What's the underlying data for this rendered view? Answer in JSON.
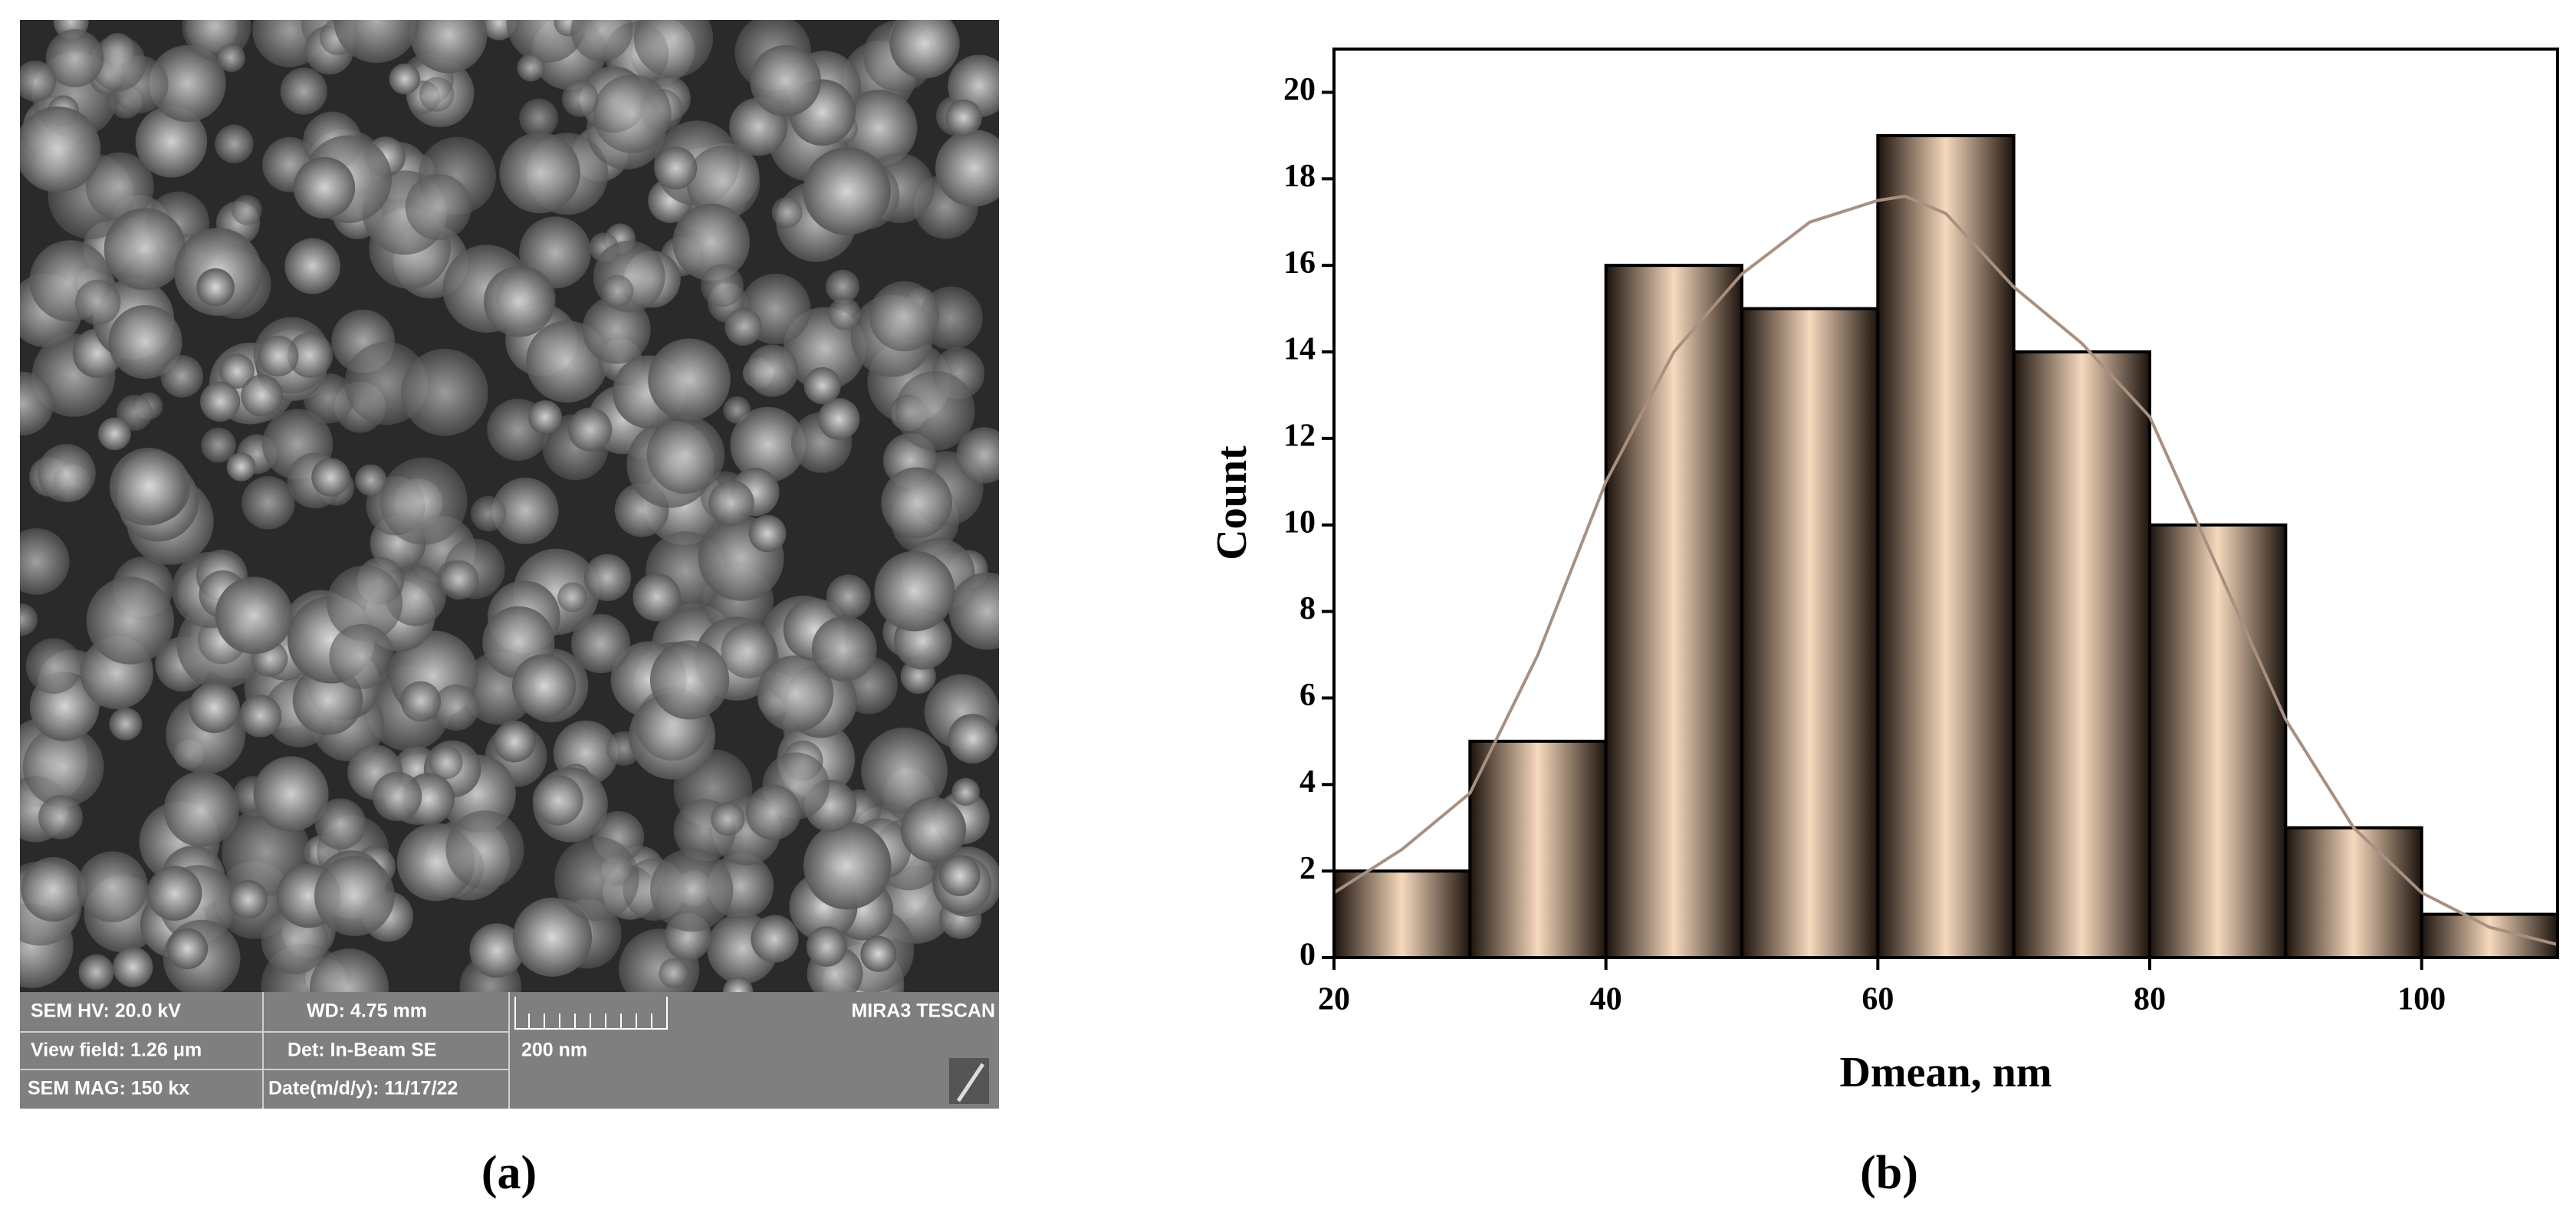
{
  "sem_info": {
    "rows": [
      [
        "SEM HV: 20.0 kV",
        "WD: 4.75 mm"
      ],
      [
        "View field: 1.26 μm",
        "Det: In-Beam SE"
      ],
      [
        "SEM MAG: 150 kx",
        "Date(m/d/y): 11/17/22"
      ]
    ],
    "scale_bar": "200 nm",
    "brand": "MIRA3 TESCAN"
  },
  "panel_labels": [
    "(a)",
    "(b)"
  ],
  "chart_data": {
    "type": "histogram",
    "x_label": "Dmean, nm",
    "y_label": "Count",
    "bins": [
      20,
      30,
      40,
      50,
      60,
      70,
      80,
      90,
      100,
      110
    ],
    "values": [
      2,
      5,
      16,
      15,
      19,
      14,
      10,
      3,
      1
    ],
    "color": "#f7d9bd",
    "edge_color": "#1c130d",
    "curve": {
      "color": "#a89080",
      "x": [
        20,
        25,
        30,
        35,
        40,
        45,
        50,
        55,
        60,
        62,
        65,
        70,
        75,
        80,
        85,
        90,
        95,
        100,
        105,
        110
      ],
      "values": [
        1.5,
        2.5,
        3.8,
        7,
        11,
        14,
        15.8,
        17,
        17.5,
        17.6,
        17.2,
        15.5,
        14.2,
        12.5,
        9,
        5.5,
        3,
        1.5,
        0.7,
        0.3
      ]
    },
    "xlim": [
      20,
      110
    ],
    "xticks": [
      20,
      40,
      60,
      80,
      100
    ],
    "ylim": [
      0,
      21
    ],
    "yticks": [
      0,
      2,
      4,
      6,
      8,
      10,
      12,
      14,
      16,
      18,
      20
    ]
  }
}
